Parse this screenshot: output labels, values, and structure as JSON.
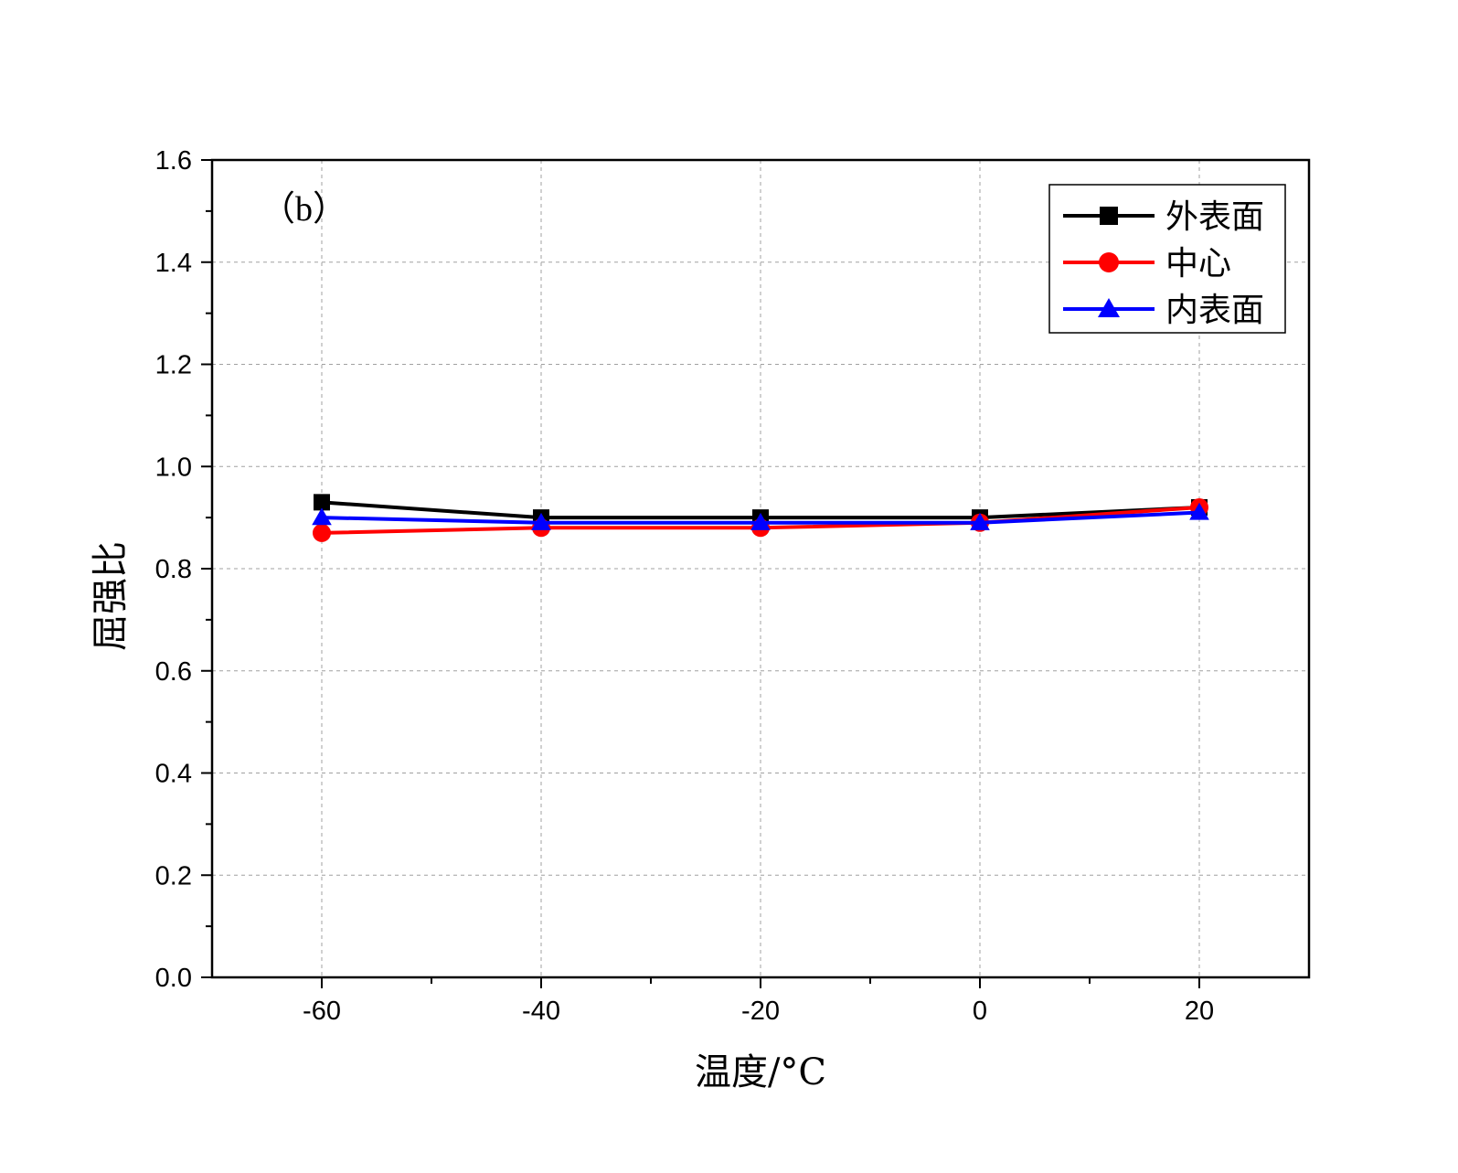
{
  "chart_data": {
    "type": "line",
    "panel_label": "（b）",
    "xlabel": "温度/°C",
    "ylabel": "屈强比",
    "xlim": [
      -70,
      30
    ],
    "ylim": [
      0.0,
      1.6
    ],
    "x": [
      -60,
      -40,
      -20,
      0,
      20
    ],
    "xticks": [
      -60,
      -40,
      -20,
      0,
      20
    ],
    "xtick_labels": [
      "-60",
      "-40",
      "-20",
      "0",
      "20"
    ],
    "yticks": [
      0.0,
      0.2,
      0.4,
      0.6,
      0.8,
      1.0,
      1.2,
      1.4,
      1.6
    ],
    "ytick_labels": [
      "0.0",
      "0.2",
      "0.4",
      "0.6",
      "0.8",
      "1.0",
      "1.2",
      "1.4",
      "1.6"
    ],
    "grid": true,
    "legend_position": "top-right",
    "series": [
      {
        "name": "外表面",
        "values": [
          0.93,
          0.9,
          0.9,
          0.9,
          0.92
        ],
        "color": "#000000",
        "marker": "square"
      },
      {
        "name": "中心",
        "values": [
          0.87,
          0.88,
          0.88,
          0.89,
          0.92
        ],
        "color": "#ff0000",
        "marker": "circle"
      },
      {
        "name": "内表面",
        "values": [
          0.9,
          0.89,
          0.89,
          0.89,
          0.91
        ],
        "color": "#0000ff",
        "marker": "triangle"
      }
    ]
  }
}
